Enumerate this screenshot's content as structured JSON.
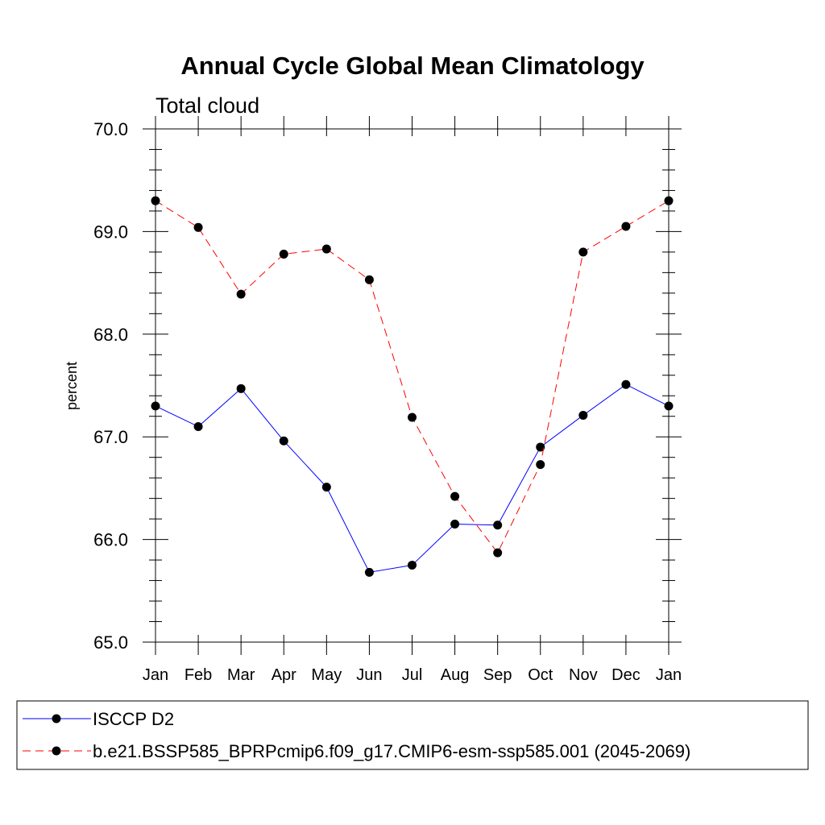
{
  "chart_data": {
    "type": "line",
    "title": "Annual Cycle Global Mean Climatology",
    "subtitle": "Total cloud",
    "xlabel": "",
    "ylabel": "percent",
    "ylim": [
      65.0,
      70.0
    ],
    "yticks": [
      "65.0",
      "66.0",
      "67.0",
      "68.0",
      "69.0",
      "70.0"
    ],
    "categories": [
      "Jan",
      "Feb",
      "Mar",
      "Apr",
      "May",
      "Jun",
      "Jul",
      "Aug",
      "Sep",
      "Oct",
      "Nov",
      "Dec",
      "Jan"
    ],
    "series": [
      {
        "name": "ISCCP D2",
        "color": "#0000ff",
        "dashed": false,
        "values": [
          67.3,
          67.1,
          67.47,
          66.96,
          66.51,
          65.68,
          65.75,
          66.15,
          66.14,
          66.9,
          67.21,
          67.51,
          67.3
        ]
      },
      {
        "name": "b.e21.BSSP585_BPRPcmip6.f09_g17.CMIP6-esm-ssp585.001 (2045-2069)",
        "color": "#ff0000",
        "dashed": true,
        "values": [
          69.3,
          69.04,
          68.39,
          68.78,
          68.83,
          68.53,
          67.19,
          66.42,
          65.87,
          66.73,
          68.8,
          69.05,
          69.3
        ]
      }
    ],
    "legend_position": "bottom"
  }
}
